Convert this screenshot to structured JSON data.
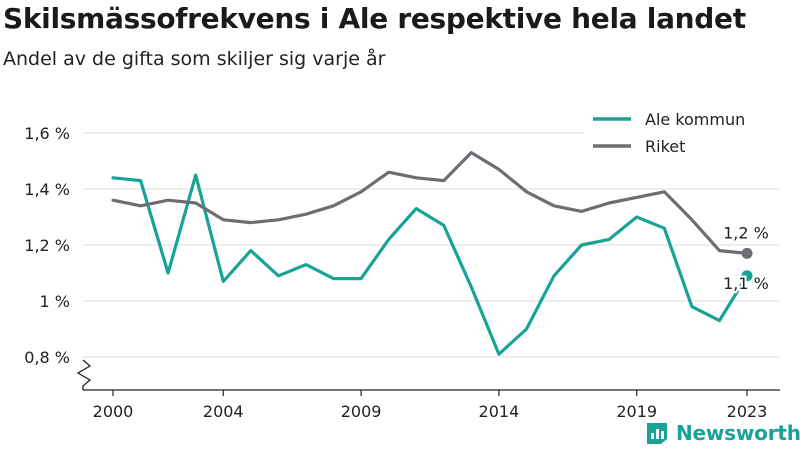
{
  "title": "Skilsmässofrekvens i Ale respektive hela landet",
  "subtitle": "Andel av de gifta som skiljer sig varje år",
  "brand": {
    "name": "Newsworthy",
    "icon": "bar-chart-logo-icon",
    "color": "#17a398"
  },
  "colors": {
    "ale": "#17a398",
    "riket": "#6e6d73",
    "grid": "#dcdcdc",
    "axis": "#222222"
  },
  "chart_data": {
    "type": "line",
    "x": [
      2000,
      2001,
      2002,
      2003,
      2004,
      2005,
      2006,
      2007,
      2008,
      2009,
      2010,
      2011,
      2012,
      2013,
      2014,
      2015,
      2016,
      2017,
      2018,
      2019,
      2020,
      2021,
      2022,
      2023
    ],
    "series": [
      {
        "name": "Ale kommun",
        "color": "#17a398",
        "values": [
          1.44,
          1.43,
          1.1,
          1.45,
          1.07,
          1.18,
          1.09,
          1.13,
          1.08,
          1.08,
          1.22,
          1.33,
          1.27,
          1.05,
          0.81,
          0.9,
          1.09,
          1.2,
          1.22,
          1.3,
          1.26,
          0.98,
          0.93,
          1.09
        ],
        "end_label": "1,1 %"
      },
      {
        "name": "Riket",
        "color": "#6e6d73",
        "values": [
          1.36,
          1.34,
          1.36,
          1.35,
          1.29,
          1.28,
          1.29,
          1.31,
          1.34,
          1.39,
          1.46,
          1.44,
          1.43,
          1.53,
          1.47,
          1.39,
          1.34,
          1.32,
          1.35,
          1.37,
          1.39,
          1.29,
          1.18,
          1.17
        ],
        "end_label": "1,2 %"
      }
    ],
    "xticks": [
      2000,
      2004,
      2009,
      2014,
      2019,
      2023
    ],
    "xtick_labels": [
      "2000",
      "2004",
      "2009",
      "2014",
      "2019",
      "2023"
    ],
    "yticks": [
      0.8,
      1.0,
      1.2,
      1.4,
      1.6
    ],
    "ytick_labels": [
      "0,8 %",
      "1 %",
      "1,2 %",
      "1,4 %",
      "1,6 %"
    ],
    "ylim": [
      0.75,
      1.6
    ],
    "xlabel": "",
    "ylabel": "",
    "grid": "horizontal",
    "axis_break": true,
    "legend": "top-right"
  }
}
